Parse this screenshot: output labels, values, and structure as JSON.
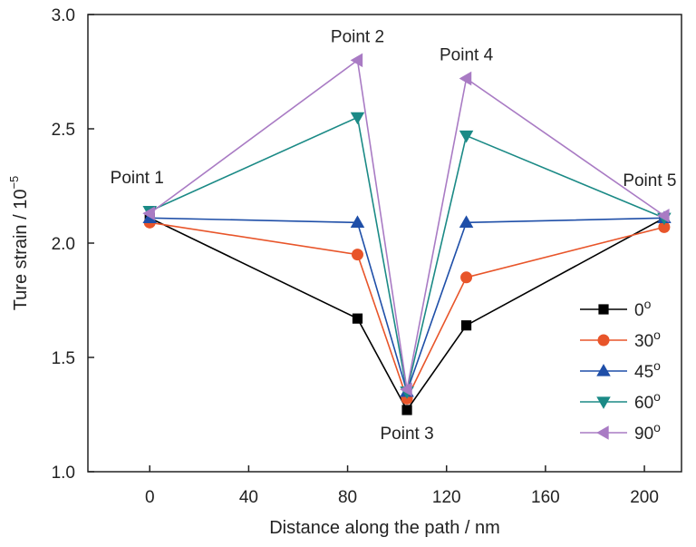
{
  "chart_data": {
    "type": "line",
    "title": "",
    "xlabel": "Distance along the path / nm",
    "ylabel": "Ture strain / 10",
    "ylabel_exponent": "−5",
    "xlim": [
      -25,
      215
    ],
    "ylim": [
      1.0,
      3.0
    ],
    "xticks": [
      0,
      40,
      80,
      120,
      160,
      200
    ],
    "yticks": [
      1.0,
      1.5,
      2.0,
      2.5,
      3.0
    ],
    "xtick_labels": [
      "0",
      "40",
      "80",
      "120",
      "160",
      "200"
    ],
    "ytick_labels": [
      "1.0",
      "1.5",
      "2.0",
      "2.5",
      "3.0"
    ],
    "grid": false,
    "legend_position": "bottom-right",
    "series": [
      {
        "name": "0",
        "name_sup": "o",
        "color": "#000000",
        "marker": "square",
        "x": [
          0,
          84,
          104,
          128,
          208
        ],
        "y": [
          2.11,
          1.67,
          1.27,
          1.64,
          2.11
        ]
      },
      {
        "name": "30",
        "name_sup": "o",
        "color": "#e8552a",
        "marker": "circle",
        "x": [
          0,
          84,
          104,
          128,
          208
        ],
        "y": [
          2.09,
          1.95,
          1.32,
          1.85,
          2.07
        ]
      },
      {
        "name": "45",
        "name_sup": "o",
        "color": "#1f4fa8",
        "marker": "triangle-up",
        "x": [
          0,
          84,
          104,
          128,
          208
        ],
        "y": [
          2.11,
          2.09,
          1.35,
          2.09,
          2.11
        ]
      },
      {
        "name": "60",
        "name_sup": "o",
        "color": "#1b8a86",
        "marker": "triangle-down",
        "x": [
          0,
          84,
          104,
          128,
          208
        ],
        "y": [
          2.14,
          2.55,
          1.35,
          2.47,
          2.11
        ]
      },
      {
        "name": "90",
        "name_sup": "o",
        "color": "#a97bc4",
        "marker": "triangle-left",
        "x": [
          0,
          84,
          104,
          128,
          208
        ],
        "y": [
          2.13,
          2.8,
          1.36,
          2.72,
          2.12
        ]
      }
    ],
    "annotations": [
      {
        "text": "Point 1",
        "x": 0,
        "y": 2.13,
        "anchor": "above-left"
      },
      {
        "text": "Point 2",
        "x": 84,
        "y": 2.8,
        "anchor": "above"
      },
      {
        "text": "Point 3",
        "x": 104,
        "y": 1.27,
        "anchor": "below"
      },
      {
        "text": "Point 4",
        "x": 128,
        "y": 2.72,
        "anchor": "above"
      },
      {
        "text": "Point 5",
        "x": 208,
        "y": 2.12,
        "anchor": "above-left"
      }
    ]
  }
}
